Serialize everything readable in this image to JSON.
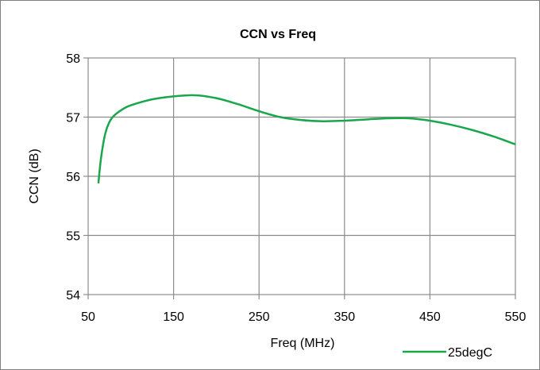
{
  "chart_data": {
    "type": "line",
    "title": "CCN vs Freq",
    "xlabel": "Freq (MHz)",
    "ylabel": "CCN (dB)",
    "xlim": [
      50,
      550
    ],
    "ylim": [
      54,
      58
    ],
    "x_ticks": [
      50,
      150,
      250,
      350,
      450,
      550
    ],
    "y_ticks": [
      54,
      55,
      56,
      57,
      58
    ],
    "grid": true,
    "legend_position": "bottom-right",
    "series": [
      {
        "name": "25degC",
        "color": "#1aa64b",
        "x": [
          62,
          65,
          70,
          75,
          80,
          90,
          100,
          125,
          150,
          175,
          200,
          225,
          250,
          275,
          300,
          325,
          350,
          375,
          400,
          425,
          450,
          475,
          500,
          525,
          550
        ],
        "y": [
          55.88,
          56.3,
          56.72,
          56.92,
          57.02,
          57.13,
          57.2,
          57.3,
          57.35,
          57.37,
          57.32,
          57.22,
          57.1,
          57.0,
          56.95,
          56.93,
          56.94,
          56.96,
          56.98,
          56.98,
          56.94,
          56.87,
          56.78,
          56.67,
          56.54
        ]
      }
    ]
  }
}
